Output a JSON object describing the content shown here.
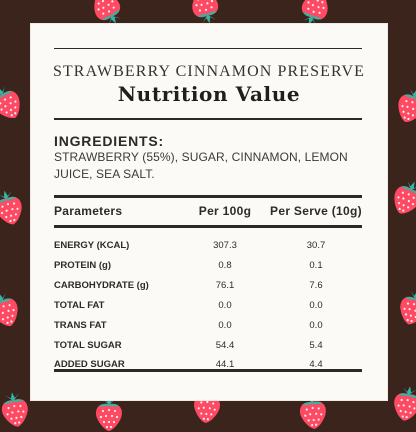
{
  "product_name": "STRAWBERRY CINNAMON PRESERVE",
  "page_title": "Nutrition Value",
  "ingredients": {
    "heading": "INGREDIENTS:",
    "text": "STRAWBERRY (55%), SUGAR, CINNAMON, LEMON JUICE, SEA SALT."
  },
  "table": {
    "headers": [
      "Parameters",
      "Per 100g",
      "Per Serve (10g)"
    ],
    "rows": [
      [
        "ENERGY (KCAL)",
        "307.3",
        "30.7"
      ],
      [
        "PROTEIN (g)",
        "0.8",
        "0.1"
      ],
      [
        "CARBOHYDRATE (g)",
        "76.1",
        "7.6"
      ],
      [
        "TOTAL FAT",
        "0.0",
        "0.0"
      ],
      [
        "TRANS FAT",
        "0.0",
        "0.0"
      ],
      [
        "TOTAL SUGAR",
        "54.4",
        "5.4"
      ],
      [
        "ADDED SUGAR",
        "44.1",
        "4.4"
      ]
    ]
  },
  "colors": {
    "background": "#3b241b",
    "card": "#fbfaf7",
    "strawberry": "#ff4a64",
    "leaf": "#2eb7a6"
  },
  "decor_icon": "strawberry-icon"
}
